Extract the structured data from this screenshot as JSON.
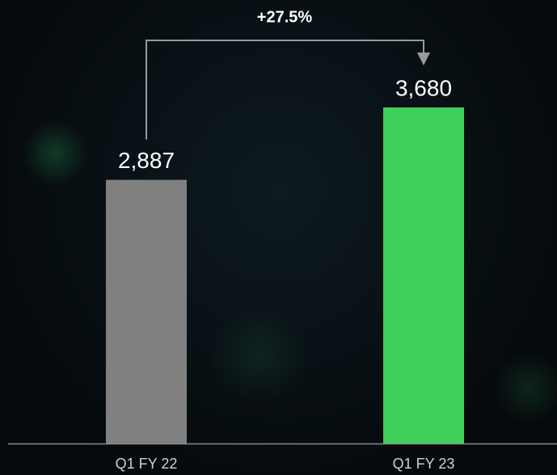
{
  "chart_data": {
    "type": "bar",
    "annotation": "+27.5%",
    "categories": [
      "Q1 FY 22",
      "Q1 FY 23"
    ],
    "values": [
      2887,
      3680
    ],
    "value_labels": [
      "2,887",
      "3,680"
    ],
    "colors": [
      "#808080",
      "#3fcf5b"
    ]
  }
}
